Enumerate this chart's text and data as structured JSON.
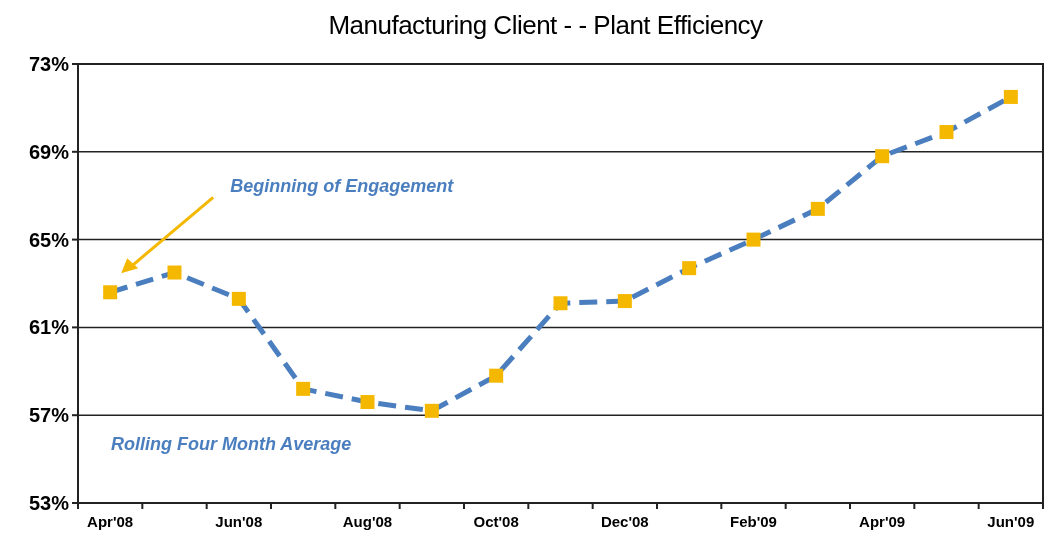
{
  "chart_data": {
    "type": "line",
    "title": "Manufacturing Client - - Plant Efficiency",
    "categories": [
      "Apr'08",
      null,
      "Jun'08",
      null,
      "Aug'08",
      null,
      "Oct'08",
      null,
      "Dec'08",
      null,
      "Feb'09",
      null,
      "Apr'09",
      null,
      "Jun'09"
    ],
    "series": [
      {
        "color": "#4a7ebf",
        "values": [
          62.6,
          63.5,
          62.3,
          58.2,
          57.6,
          57.2,
          58.8,
          62.1,
          62.2,
          63.7,
          65.0,
          66.4,
          68.8,
          69.9,
          71.5
        ]
      }
    ],
    "ylim": [
      53,
      73
    ],
    "yticks": [
      {
        "value": 53,
        "label": "53%"
      },
      {
        "value": 57,
        "label": "57%"
      },
      {
        "value": 61,
        "label": "61%"
      },
      {
        "value": 65,
        "label": "65%"
      },
      {
        "value": 69,
        "label": "69%"
      },
      {
        "value": 73,
        "label": "73%"
      }
    ],
    "grid": "y",
    "marker": "square",
    "line_style": "dashed",
    "annotations": [
      "Beginning of Engagement",
      "Rolling Four Month Average"
    ]
  }
}
